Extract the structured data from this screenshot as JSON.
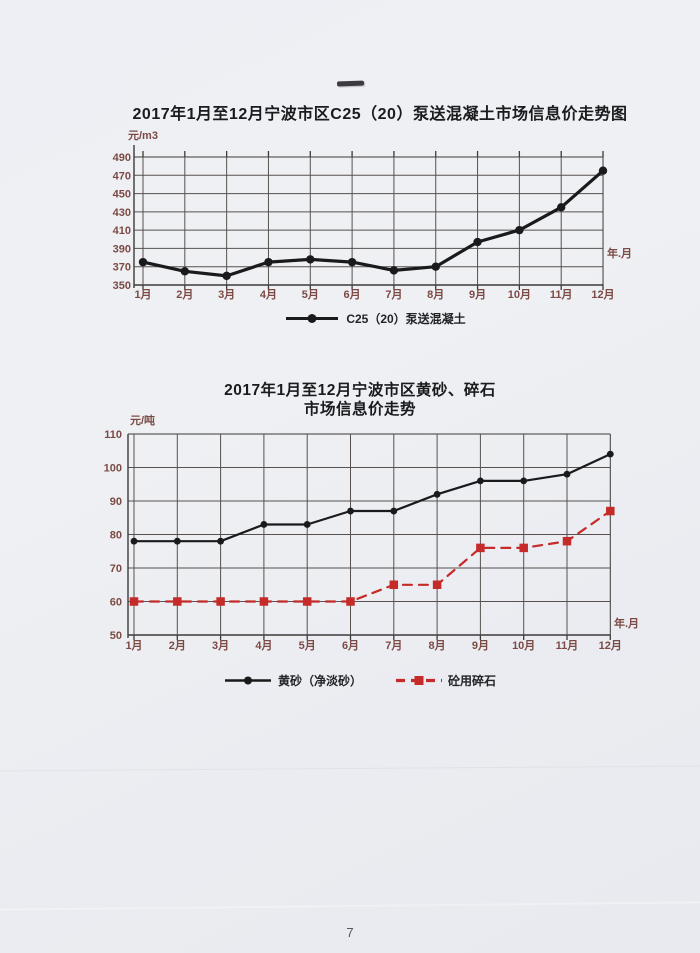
{
  "page": {
    "number": "7"
  },
  "colors": {
    "axis_label": "#7c4a44",
    "grid": "#56514f",
    "frame": "#3d3a38",
    "series_black": "#1a1a1c",
    "series_red": "#c52b28",
    "title_text": "#1b1b1e"
  },
  "chart_data": [
    {
      "type": "line",
      "title": "2017年1月至12月宁波市区C25（20）泵送混凝土市场信息价走势图",
      "unit_label": "元/m3",
      "axis_note": "年.月",
      "categories": [
        "1月",
        "2月",
        "3月",
        "4月",
        "5月",
        "6月",
        "7月",
        "8月",
        "9月",
        "10月",
        "11月",
        "12月"
      ],
      "ylim": [
        350,
        490
      ],
      "yticks": [
        350,
        370,
        390,
        410,
        430,
        450,
        470,
        490
      ],
      "grid": true,
      "legend_position": "bottom",
      "series": [
        {
          "name": "C25（20）泵送混凝土",
          "color": "#1a1a1c",
          "line_style": "solid",
          "marker": "circle",
          "values": [
            375,
            365,
            360,
            375,
            378,
            375,
            366,
            370,
            397,
            410,
            435,
            475
          ]
        }
      ]
    },
    {
      "type": "line",
      "title_line1": "2017年1月至12月宁波市区黄砂、碎石",
      "title_line2": "市场信息价走势",
      "unit_label": "元/吨",
      "axis_note": "年.月",
      "categories": [
        "1月",
        "2月",
        "3月",
        "4月",
        "5月",
        "6月",
        "7月",
        "8月",
        "9月",
        "10月",
        "11月",
        "12月"
      ],
      "ylim": [
        50,
        110
      ],
      "yticks": [
        50,
        60,
        70,
        80,
        90,
        100,
        110
      ],
      "grid": true,
      "legend_position": "bottom",
      "series": [
        {
          "name": "黄砂（净淡砂）",
          "color": "#1a1a1c",
          "line_style": "solid",
          "marker": "circle",
          "values": [
            78,
            78,
            78,
            83,
            83,
            87,
            87,
            92,
            96,
            96,
            98,
            104
          ]
        },
        {
          "name": "砼用碎石",
          "color": "#c52b28",
          "line_style": "dashed",
          "marker": "square",
          "values": [
            60,
            60,
            60,
            60,
            60,
            60,
            65,
            65,
            76,
            76,
            78,
            87
          ]
        }
      ]
    }
  ]
}
